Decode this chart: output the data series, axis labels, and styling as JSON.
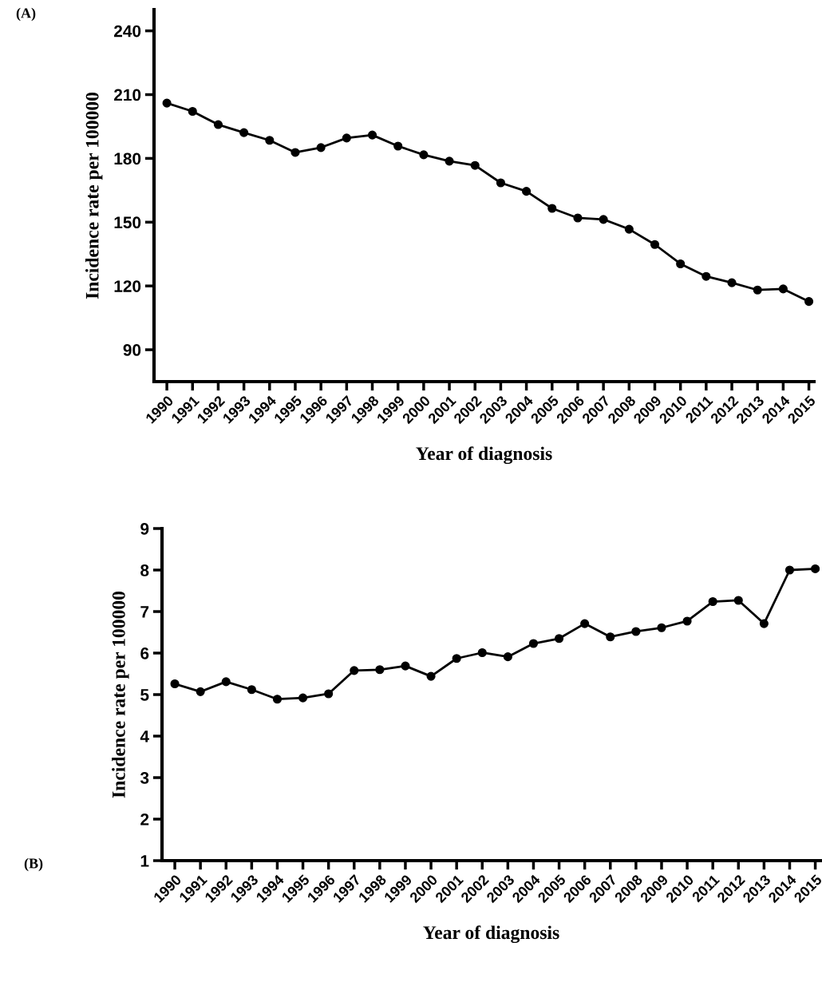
{
  "chart_data": [
    {
      "type": "line",
      "xlabel": "Year of diagnosis",
      "ylabel": "Incidence rate per 100000",
      "annotations": [
        "(A)"
      ],
      "categories": [
        "1990",
        "1991",
        "1992",
        "1993",
        "1994",
        "1995",
        "1996",
        "1997",
        "1998",
        "1999",
        "2000",
        "2001",
        "2002",
        "2003",
        "2004",
        "2005",
        "2006",
        "2007",
        "2008",
        "2009",
        "2010",
        "2011",
        "2012",
        "2013",
        "2014",
        "2015"
      ],
      "series": [
        {
          "color": "#000000",
          "values": [
            206,
            202.1,
            195.9,
            192.1,
            188.5,
            182.8,
            185.1,
            189.6,
            191,
            185.8,
            181.7,
            178.7,
            176.7,
            168.5,
            164.5,
            156.5,
            152,
            151.3,
            146.7,
            139.5,
            130.4,
            124.5,
            121.5,
            118.1,
            118.6,
            112.7
          ]
        }
      ],
      "ylim": [
        75,
        250
      ],
      "yticks": [
        90,
        120,
        150,
        180,
        210,
        240
      ],
      "marker": "circle",
      "line_style": "solid",
      "grid": false,
      "legend": false
    },
    {
      "type": "line",
      "xlabel": "Year of diagnosis",
      "ylabel": "Incidence rate per 100000",
      "annotations": [
        "(B)"
      ],
      "categories": [
        "1990",
        "1991",
        "1992",
        "1993",
        "1994",
        "1995",
        "1996",
        "1997",
        "1998",
        "1999",
        "2000",
        "2001",
        "2002",
        "2003",
        "2004",
        "2005",
        "2006",
        "2007",
        "2008",
        "2009",
        "2010",
        "2011",
        "2012",
        "2013",
        "2014",
        "2015"
      ],
      "series": [
        {
          "color": "#000000",
          "values": [
            5.26,
            5.07,
            5.31,
            5.12,
            4.89,
            4.92,
            5.02,
            5.58,
            5.6,
            5.69,
            5.44,
            5.87,
            6.01,
            5.91,
            6.23,
            6.35,
            6.71,
            6.39,
            6.52,
            6.61,
            6.77,
            7.24,
            7.27,
            6.71,
            8.0,
            8.03
          ]
        }
      ],
      "ylim": [
        1,
        9
      ],
      "yticks": [
        1,
        2,
        3,
        4,
        5,
        6,
        7,
        8,
        9
      ],
      "marker": "circle",
      "line_style": "solid",
      "grid": false,
      "legend": false
    }
  ]
}
